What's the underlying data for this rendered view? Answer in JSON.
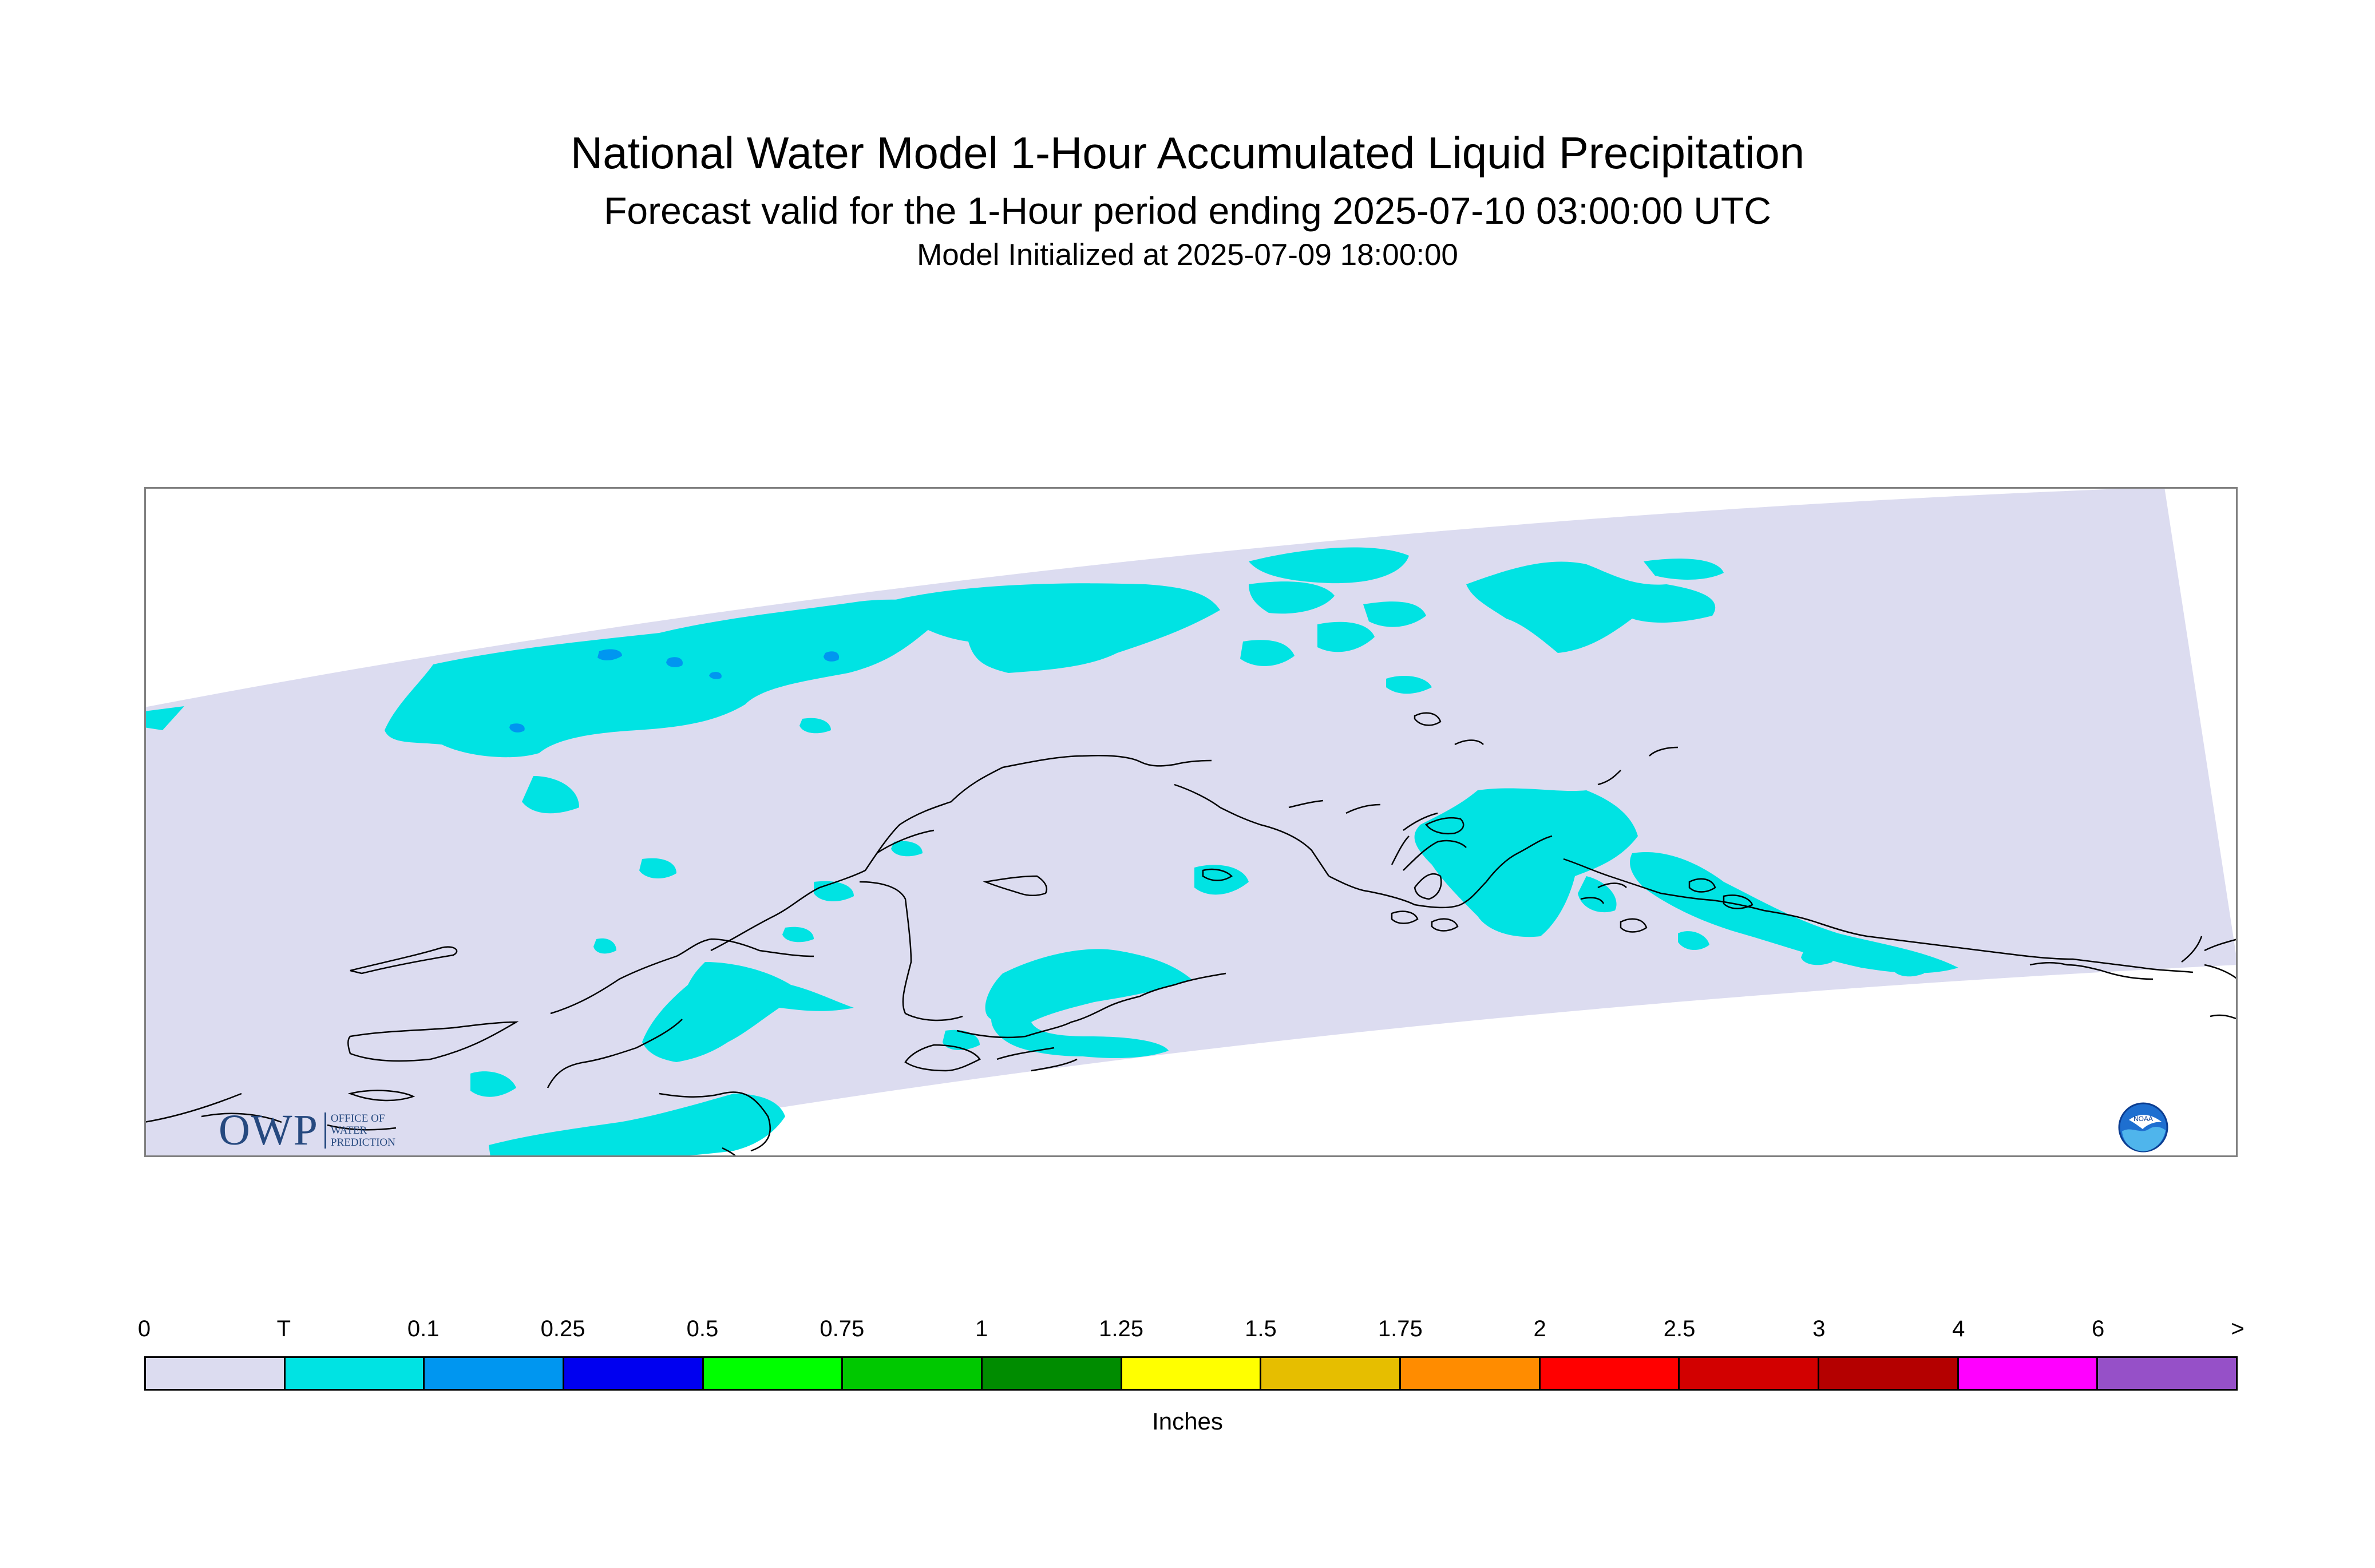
{
  "title": "National Water Model 1-Hour Accumulated Liquid Precipitation",
  "subtitle": "Forecast valid for the 1-Hour period ending 2025-07-10 03:00:00 UTC",
  "init": "Model Initialized at 2025-07-09 18:00:00",
  "map": {
    "region": "Alaska",
    "colors": {
      "domain": "#dcdcf0",
      "trace": "#00e3e3",
      "light": "#0096f0",
      "coast": "#000000",
      "frame": "#808080"
    }
  },
  "logos": {
    "owp": {
      "mark": "OWP",
      "lines": [
        "OFFICE OF",
        "WATER",
        "PREDICTION"
      ]
    },
    "noaa": {
      "text": "NOAA"
    }
  },
  "legend": {
    "labels": [
      "0",
      "T",
      "0.1",
      "0.25",
      "0.5",
      "0.75",
      "1",
      "1.25",
      "1.5",
      "1.75",
      "2",
      "2.5",
      "3",
      "4",
      "6",
      ">"
    ],
    "colors": [
      "#dcdcf0",
      "#00e3e3",
      "#0096f0",
      "#0000f0",
      "#00ff00",
      "#00c800",
      "#008c00",
      "#ffff00",
      "#e6be00",
      "#ff8c00",
      "#ff0000",
      "#d20000",
      "#b40000",
      "#ff00ff",
      "#9650c8"
    ],
    "units": "Inches"
  }
}
